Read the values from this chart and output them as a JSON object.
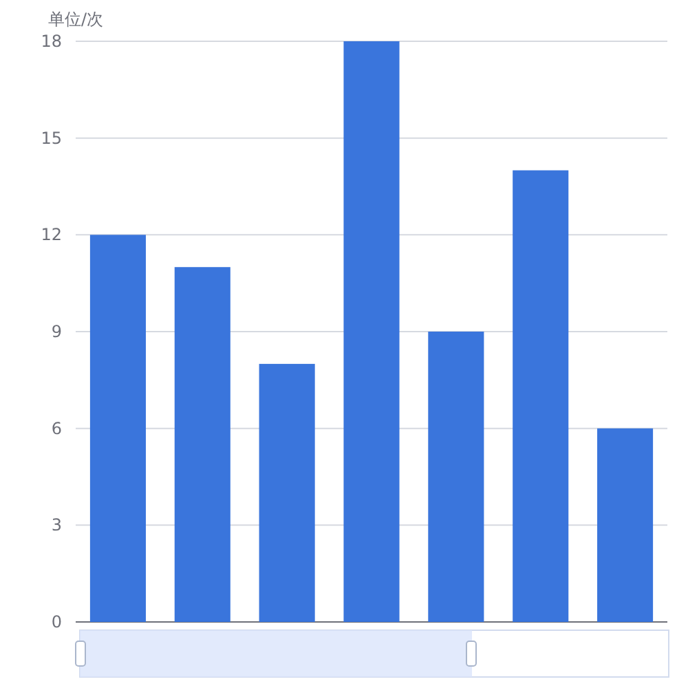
{
  "chart_data": {
    "type": "bar",
    "ylabel": "单位/次",
    "categories": [
      null,
      null,
      null,
      null,
      null,
      null,
      null
    ],
    "series": [
      {
        "color": "#3a75dc",
        "values": [
          12,
          11,
          8,
          18,
          9,
          14,
          6
        ]
      }
    ],
    "ylim": [
      0,
      18
    ],
    "yticks": [
      0,
      3,
      6,
      9,
      12,
      15,
      18
    ],
    "grid": "y"
  }
}
